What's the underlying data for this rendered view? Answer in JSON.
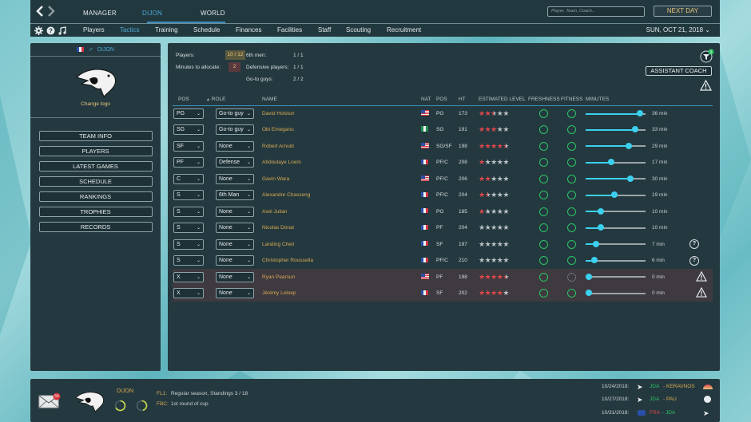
{
  "top": {
    "tabs": [
      {
        "label": "MANAGER",
        "active": false
      },
      {
        "label": "DIJON",
        "active": true
      },
      {
        "label": "WORLD",
        "active": false
      }
    ],
    "search_placeholder": "Player, Team, Coach...",
    "next_day_label": "NEXT DAY"
  },
  "nav": {
    "items": [
      "Players",
      "Tactics",
      "Training",
      "Schedule",
      "Finances",
      "Facilities",
      "Staff",
      "Scouting",
      "Recruitment"
    ],
    "active": "Tactics",
    "date": "SUN, OCT 21, 2018"
  },
  "team_panel": {
    "name": "DIJON",
    "change_logo": "Change logo",
    "buttons": [
      "TEAM INFO",
      "PLAYERS",
      "LATEST GAMES",
      "SCHEDULE",
      "RANKINGS",
      "TROPHIES",
      "RECORDS"
    ]
  },
  "stats": {
    "players_label": "Players:",
    "players_value": "10 / 12",
    "minutes_label": "Minutes to allocate:",
    "minutes_value": "2",
    "sixth_label": "6th men:",
    "sixth_value": "1 / 1",
    "def_label": "Defensive players:",
    "def_value": "1 / 1",
    "goto_label": "Go-to guys:",
    "goto_value": "2 / 2"
  },
  "assistant_coach_label": "ASSISTANT COACH",
  "filter_badge": "1",
  "columns": [
    "POS",
    "ROLE",
    "NAME",
    "NAT",
    "POS",
    "HT",
    "ESTIMATED LEVEL",
    "FRESHNESS",
    "FITNESS",
    "MINUTES"
  ],
  "players": [
    {
      "pos": "PG",
      "role": "Go-to guy",
      "name": "David Holstun",
      "nat": "us",
      "ppos": "PG",
      "ht": "173",
      "stars": 2.5,
      "fitness_full": true,
      "minutes": 36,
      "minutes_label": "36 min",
      "flag_icon": "",
      "warn": false
    },
    {
      "pos": "SG",
      "role": "Go-to guy",
      "name": "Obi Emeganu",
      "nat": "ng",
      "ppos": "SG",
      "ht": "191",
      "stars": 3,
      "fitness_full": true,
      "minutes": 33,
      "minutes_label": "33 min",
      "flag_icon": "",
      "warn": false
    },
    {
      "pos": "SF",
      "role": "None",
      "name": "Robert Arnuld",
      "nat": "us",
      "ppos": "SG/SF",
      "ht": "198",
      "stars": 4.5,
      "fitness_full": true,
      "minutes": 29,
      "minutes_label": "29 min",
      "flag_icon": "",
      "warn": false
    },
    {
      "pos": "PF",
      "role": "Defense",
      "name": "Abdoulaye Loem",
      "nat": "fr",
      "ppos": "PF/C",
      "ht": "208",
      "stars": 1,
      "fitness_full": true,
      "minutes": 17,
      "minutes_label": "17 min",
      "flag_icon": "",
      "warn": false
    },
    {
      "pos": "C",
      "role": "None",
      "name": "Gavin Wara",
      "nat": "us",
      "ppos": "PF/C",
      "ht": "206",
      "stars": 2,
      "fitness_full": true,
      "minutes": 30,
      "minutes_label": "30 min",
      "flag_icon": "",
      "warn": false
    },
    {
      "pos": "S",
      "role": "6th Man",
      "name": "Alexandre Chasseng",
      "nat": "fr",
      "ppos": "PF/C",
      "ht": "204",
      "stars": 1.5,
      "fitness_full": true,
      "minutes": 19,
      "minutes_label": "19 min",
      "flag_icon": "",
      "warn": false
    },
    {
      "pos": "S",
      "role": "None",
      "name": "Axel Julian",
      "nat": "fr",
      "ppos": "PG",
      "ht": "185",
      "stars": 1,
      "fitness_full": true,
      "minutes": 10,
      "minutes_label": "10 min",
      "flag_icon": "",
      "warn": false
    },
    {
      "pos": "S",
      "role": "None",
      "name": "Nicolas Doraz",
      "nat": "fr",
      "ppos": "PF",
      "ht": "204",
      "stars": 0,
      "fitness_full": true,
      "minutes": 10,
      "minutes_label": "10 min",
      "flag_icon": "",
      "warn": false
    },
    {
      "pos": "S",
      "role": "None",
      "name": "Landing Cheri",
      "nat": "fr",
      "ppos": "SF",
      "ht": "197",
      "stars": 0,
      "fitness_full": true,
      "minutes": 7,
      "minutes_label": "7 min",
      "flag_icon": "question",
      "warn": false
    },
    {
      "pos": "S",
      "role": "None",
      "name": "Christopher Roussella",
      "nat": "fr",
      "ppos": "PF/C",
      "ht": "210",
      "stars": 0,
      "fitness_full": true,
      "minutes": 6,
      "minutes_label": "6 min",
      "flag_icon": "question",
      "warn": false
    },
    {
      "pos": "X",
      "role": "None",
      "name": "Ryan Pearsun",
      "nat": "us",
      "ppos": "PF",
      "ht": "198",
      "stars": 4.5,
      "fitness_full": false,
      "minutes": 0,
      "minutes_label": "0 min",
      "flag_icon": "warning",
      "warn": true
    },
    {
      "pos": "X",
      "role": "None",
      "name": "Jérémy Leloep",
      "nat": "fr",
      "ppos": "SF",
      "ht": "202",
      "stars": 4,
      "fitness_full": true,
      "minutes": 0,
      "minutes_label": "0 min",
      "flag_icon": "warning",
      "warn": true
    }
  ],
  "footer": {
    "mail_count": "54",
    "team": "DIJON",
    "comp1_code": "FL1:",
    "comp1_text": "Regular season, Standings 3 / 18",
    "comp2_code": "FBC:",
    "comp2_text": "1st round of cup",
    "games": [
      {
        "date": "10/24/2018:",
        "label": "JDA - KERAVNOS",
        "home": "JDA",
        "away": "KERAVNOS"
      },
      {
        "date": "10/27/2018:",
        "label": "JDA - PAU",
        "home": "JDA",
        "away": "PAU"
      },
      {
        "date": "10/31/2018:",
        "label": "FRA - JDA",
        "home": "FRA",
        "away": "JDA"
      }
    ]
  },
  "colors": {
    "accent_blue": "#4aa9d6",
    "gold": "#e6c47e",
    "player_name": "#d8a955",
    "star_red": "#e0474c",
    "slider": "#3ad0ee",
    "ring_green": "#2ec266",
    "panel": "#24393f"
  }
}
